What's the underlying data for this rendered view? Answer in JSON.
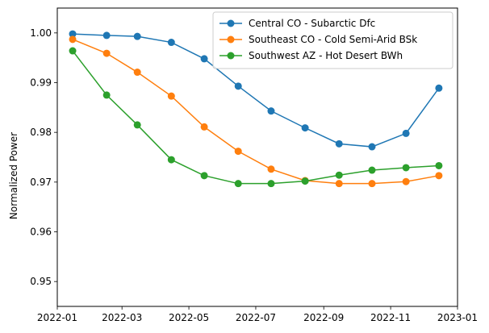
{
  "chart_data": {
    "type": "line",
    "title": "",
    "xlabel": "",
    "ylabel": "Normalized Power",
    "xlim": [
      "2022-01-01",
      "2023-01-01"
    ],
    "ylim": [
      0.945,
      1.005
    ],
    "grid": false,
    "legend_position": "top-right",
    "x_ticks": [
      "2022-01-01",
      "2022-03-01",
      "2022-05-01",
      "2022-07-01",
      "2022-09-01",
      "2022-11-01",
      "2023-01-01"
    ],
    "x_tick_labels": [
      "2022-01",
      "2022-03",
      "2022-05",
      "2022-07",
      "2022-09",
      "2022-11",
      "2023-01"
    ],
    "y_ticks": [
      0.95,
      0.96,
      0.97,
      0.98,
      0.99,
      1.0
    ],
    "y_tick_labels": [
      "0.95",
      "0.96",
      "0.97",
      "0.98",
      "0.99",
      "1.00"
    ],
    "x": [
      "2022-01-15",
      "2022-02-15",
      "2022-03-15",
      "2022-04-15",
      "2022-05-15",
      "2022-06-15",
      "2022-07-15",
      "2022-08-15",
      "2022-09-15",
      "2022-10-15",
      "2022-11-15",
      "2022-12-15"
    ],
    "series": [
      {
        "name": "Central CO - Subarctic Dfc",
        "color": "#1f77b4",
        "values": [
          0.9998,
          0.9995,
          0.9993,
          0.9981,
          0.9948,
          0.9893,
          0.9843,
          0.9809,
          0.9777,
          0.9771,
          0.9798,
          0.9889
        ]
      },
      {
        "name": "Southeast CO - Cold Semi-Arid BSk",
        "color": "#ff7f0e",
        "values": [
          0.9987,
          0.9959,
          0.9921,
          0.9873,
          0.9811,
          0.9762,
          0.9726,
          0.9703,
          0.9697,
          0.9697,
          0.9701,
          0.9713
        ]
      },
      {
        "name": "Southwest AZ - Hot Desert BWh",
        "color": "#2ca02c",
        "values": [
          0.9964,
          0.9875,
          0.9815,
          0.9745,
          0.9713,
          0.9697,
          0.9697,
          0.9702,
          0.9714,
          0.9724,
          0.9729,
          0.9733
        ]
      }
    ]
  }
}
